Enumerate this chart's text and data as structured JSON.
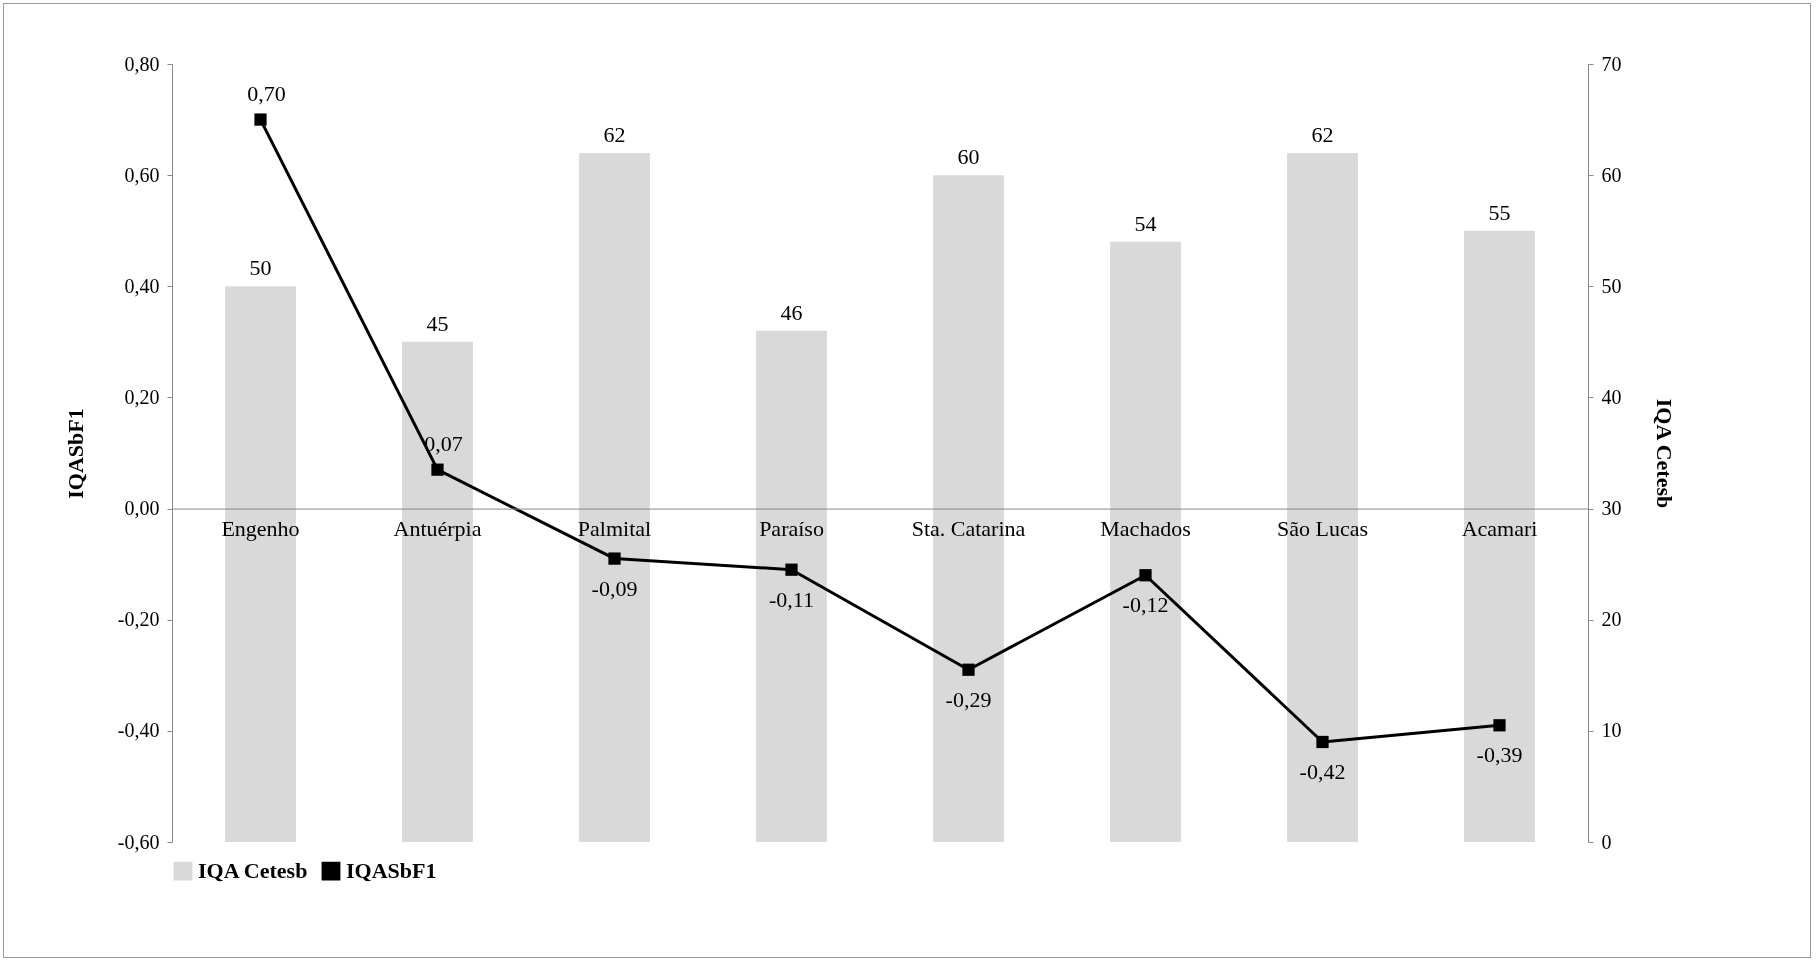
{
  "chart_data": {
    "type": "bar",
    "categories": [
      "Engenho",
      "Antuérpia",
      "Palmital",
      "Paraíso",
      "Sta. Catarina",
      "Machados",
      "São Lucas",
      "Acamari"
    ],
    "ylabel": "IQASbF1",
    "y2label": "IQA Cetesb",
    "series": [
      {
        "name": "IQA Cetesb",
        "axis": "y2",
        "color": "#d9d9d9",
        "values": [
          50,
          45,
          62,
          46,
          60,
          54,
          62,
          55
        ],
        "value_labels": [
          "50",
          "45",
          "62",
          "46",
          "60",
          "54",
          "62",
          "55"
        ]
      },
      {
        "name": "IQASbF1",
        "type": "line",
        "color": "#000000",
        "values": [
          0.7,
          0.07,
          -0.09,
          -0.11,
          -0.29,
          -0.12,
          -0.42,
          -0.39
        ],
        "value_labels": [
          "0,70",
          "0,07",
          "-0,09",
          "-0,11",
          "-0,29",
          "-0,12",
          "-0,42",
          "-0,39"
        ]
      }
    ],
    "ylim": [
      -0.6,
      0.8
    ],
    "yticks": [
      {
        "value": -0.6,
        "label": "-0,60"
      },
      {
        "value": -0.4,
        "label": "-0,40"
      },
      {
        "value": -0.2,
        "label": "-0,20"
      },
      {
        "value": 0,
        "label": "0,00"
      },
      {
        "value": 0.2,
        "label": "0,20"
      },
      {
        "value": 0.4,
        "label": "0,40"
      },
      {
        "value": 0.6,
        "label": "0,60"
      },
      {
        "value": 0.8,
        "label": "0,80"
      }
    ],
    "y2lim": [
      0,
      70
    ],
    "y2ticks": [
      0,
      10,
      20,
      30,
      40,
      50,
      60,
      70
    ],
    "grid": false,
    "legend": "bottom",
    "marker": "square",
    "line_style": "solid"
  }
}
